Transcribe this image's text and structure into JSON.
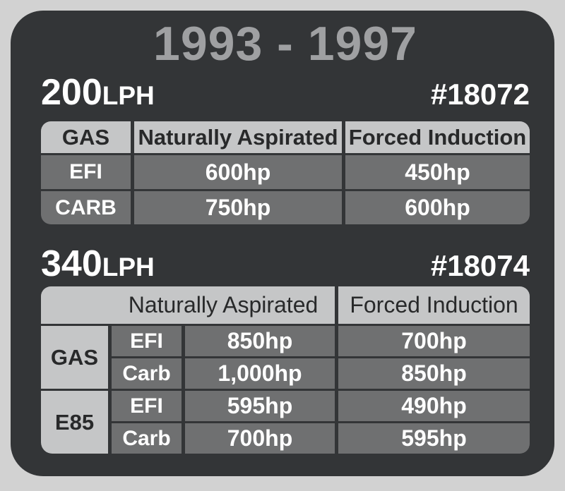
{
  "title": "1993 - 1997",
  "sections": [
    {
      "flow_value": "200",
      "flow_unit": "LPH",
      "part_number": "#18072",
      "table": {
        "fuel_header": "GAS",
        "col_na": "Naturally Aspirated",
        "col_fi": "Forced Induction",
        "rows": [
          {
            "label": "EFI",
            "na": "600hp",
            "fi": "450hp"
          },
          {
            "label": "CARB",
            "na": "750hp",
            "fi": "600hp"
          }
        ]
      }
    },
    {
      "flow_value": "340",
      "flow_unit": "LPH",
      "part_number": "#18074",
      "table": {
        "col_na": "Naturally Aspirated",
        "col_fi": "Forced Induction",
        "groups": [
          {
            "fuel": "GAS",
            "rows": [
              {
                "label": "EFI",
                "na": "850hp",
                "fi": "700hp"
              },
              {
                "label": "Carb",
                "na": "1,000hp",
                "fi": "850hp"
              }
            ]
          },
          {
            "fuel": "E85",
            "rows": [
              {
                "label": "EFI",
                "na": "595hp",
                "fi": "490hp"
              },
              {
                "label": "Carb",
                "na": "700hp",
                "fi": "595hp"
              }
            ]
          }
        ]
      }
    }
  ],
  "colors": {
    "page_bg": "#d2d2d2",
    "card_bg": "#333537",
    "header_cell_bg": "#c5c6c7",
    "body_cell_bg": "#6f7071",
    "title_text": "#9fa0a2",
    "dark_text": "#28292a",
    "light_text": "#ffffff"
  }
}
